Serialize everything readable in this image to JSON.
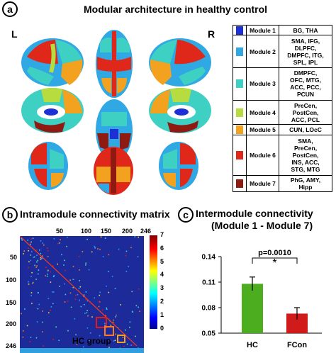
{
  "panel_a": {
    "badge": "a",
    "title": "Modular architecture in healthy control",
    "left_label": "L",
    "right_label": "R",
    "modules": [
      {
        "name": "Module 1",
        "regions": [
          "BG, THA"
        ],
        "color": "#1f2fd6"
      },
      {
        "name": "Module 2",
        "regions": [
          "SMA, IFG,",
          "DLPFC,",
          "DMPFC, ITG,",
          "SPL, IPL"
        ],
        "color": "#2fa8e4"
      },
      {
        "name": "Module 3",
        "regions": [
          "DMPFC,",
          "OFC, MTG,",
          "ACC, PCC,",
          "PCUN"
        ],
        "color": "#3fd0c4"
      },
      {
        "name": "Module 4",
        "regions": [
          "PreCen,",
          "PostCen,",
          "ACC, PCL"
        ],
        "color": "#b7dc3f"
      },
      {
        "name": "Module 5",
        "regions": [
          "CUN, LOcC"
        ],
        "color": "#f2a21e"
      },
      {
        "name": "Module 6",
        "regions": [
          "SMA,",
          "PreCen,",
          "PostCen,",
          "INS, ACC,",
          "STG, MTG"
        ],
        "color": "#e0281a"
      },
      {
        "name": "Module 7",
        "regions": [
          "PhG, AMY,",
          "Hipp"
        ],
        "color": "#8e1a12"
      }
    ]
  },
  "panel_b": {
    "badge": "b",
    "title": "Intramodule connectivity matrix",
    "xlabel": "HC group",
    "top_ticks": [
      "50",
      "100",
      "150",
      "200",
      "246"
    ],
    "left_ticks": [
      "50",
      "100",
      "150",
      "200",
      "246"
    ],
    "colorbar_ticks": [
      "7",
      "6",
      "5",
      "4",
      "3",
      "2",
      "1",
      "0"
    ]
  },
  "panel_c": {
    "badge": "c",
    "title_line1": "Intermodule connectivity",
    "title_line2": "(Module 1 - Module 7)",
    "pvalue_label": "p=0.0010",
    "significance": "*",
    "chart_data": {
      "type": "bar",
      "categories": [
        "HC",
        "FCon"
      ],
      "values": [
        0.108,
        0.073
      ],
      "errors": [
        0.008,
        0.007
      ],
      "colors": [
        "#4cae1f",
        "#d11a1a"
      ],
      "ylim": [
        0.05,
        0.14
      ],
      "yticks": [
        "0.14",
        "0.11",
        "0.08",
        "0.05"
      ]
    }
  }
}
